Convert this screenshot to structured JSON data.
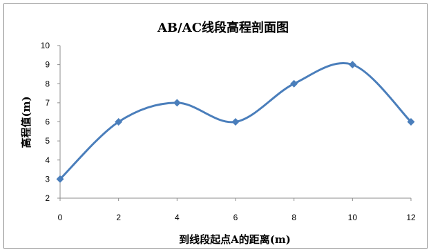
{
  "chart_data": {
    "type": "scatter",
    "title": "AB/AC线段高程剖面图",
    "xlabel": "到线段起点A的距离(m)",
    "ylabel": "高程值(m)",
    "xlim": [
      0,
      12
    ],
    "ylim": [
      2,
      10
    ],
    "xticks": [
      "0",
      "2",
      "4",
      "6",
      "8",
      "10",
      "12"
    ],
    "yticks": [
      "2",
      "3",
      "4",
      "5",
      "6",
      "7",
      "8",
      "9",
      "10"
    ],
    "grid": false,
    "legend": "none",
    "smoothed": true,
    "marker": "diamond",
    "color": "#4a7ebb",
    "series": [
      {
        "x": [
          0,
          2,
          4,
          6,
          8,
          10,
          12
        ],
        "y": [
          3,
          6,
          7,
          6,
          8,
          9,
          6
        ]
      }
    ]
  }
}
